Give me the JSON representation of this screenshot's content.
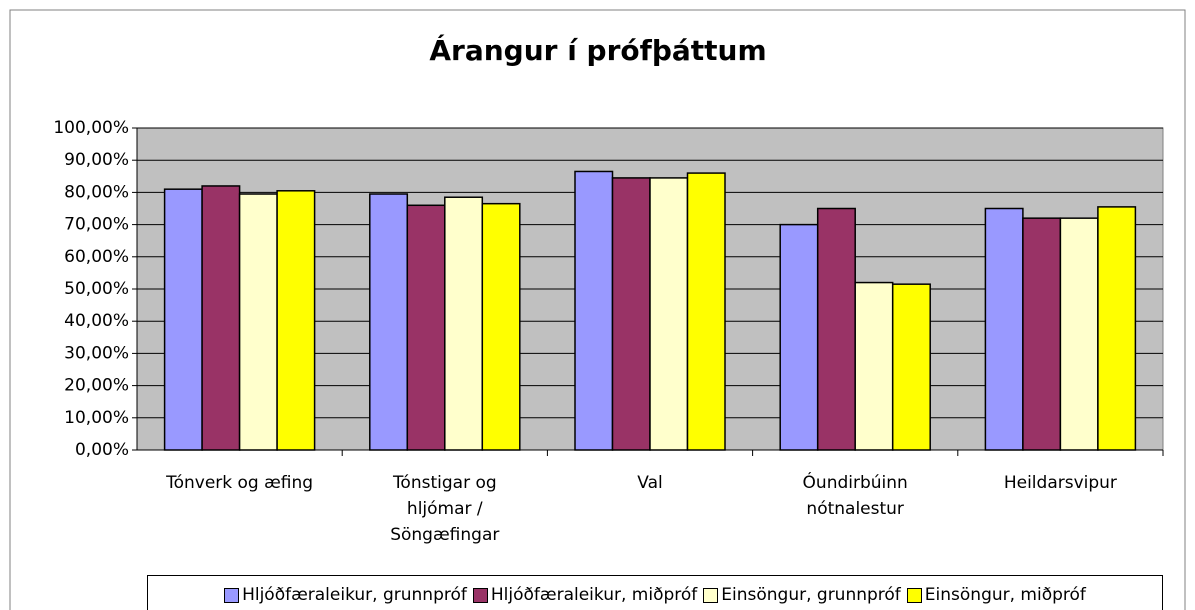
{
  "chart_data": {
    "type": "bar",
    "title": "Árangur í prófþáttum",
    "categories": [
      "Tónverk og æfing",
      "Tónstigar og\nhljómar /\nSöngæfingar",
      "Val",
      "Óundirbúinn\nnótnalestur",
      "Heildarsvipur"
    ],
    "series": [
      {
        "name": "Hljóðfæraleikur, grunnpróf",
        "color": "#9999ff",
        "values": [
          81,
          79.5,
          86.5,
          70,
          75
        ]
      },
      {
        "name": "Hljóðfæraleikur, miðpróf",
        "color": "#993366",
        "values": [
          82,
          76,
          84.5,
          75,
          72
        ]
      },
      {
        "name": "Einsöngur, grunnpróf",
        "color": "#ffffcc",
        "values": [
          79.5,
          78.5,
          84.5,
          52,
          72
        ]
      },
      {
        "name": "Einsöngur, miðpróf",
        "color": "#ffff00",
        "values": [
          80.5,
          76.5,
          86,
          51.5,
          75.5
        ]
      }
    ],
    "ylim": [
      0,
      100
    ],
    "yticks": [
      {
        "value": 0,
        "label": "0,00%"
      },
      {
        "value": 10,
        "label": "10,00%"
      },
      {
        "value": 20,
        "label": "20,00%"
      },
      {
        "value": 30,
        "label": "30,00%"
      },
      {
        "value": 40,
        "label": "40,00%"
      },
      {
        "value": 50,
        "label": "50,00%"
      },
      {
        "value": 60,
        "label": "60,00%"
      },
      {
        "value": 70,
        "label": "70,00%"
      },
      {
        "value": 80,
        "label": "80,00%"
      },
      {
        "value": 90,
        "label": "90,00%"
      },
      {
        "value": 100,
        "label": "100,00%"
      }
    ],
    "grid": true,
    "legend": "bottom"
  }
}
